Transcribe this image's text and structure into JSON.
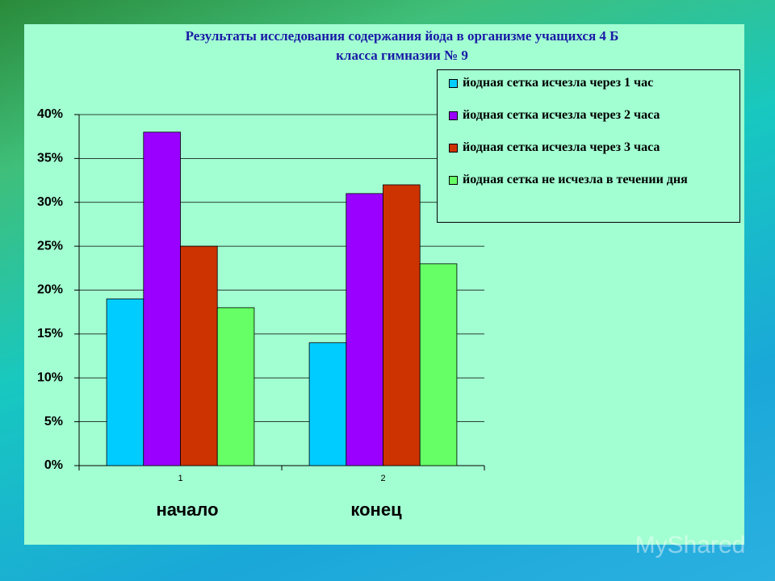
{
  "chart_data": {
    "type": "bar",
    "title": [
      "Результаты исследования содержания йода в организме учащихся 4 Б",
      "класса гимназии № 9"
    ],
    "categories": [
      "1",
      "2"
    ],
    "category_captions": [
      "начало",
      "конец"
    ],
    "series": [
      {
        "name": "йодная сетка исчезла через 1 час",
        "color": "#00ccff",
        "values": [
          19,
          14
        ]
      },
      {
        "name": "йодная сетка исчезла через 2 часа",
        "color": "#9900ff",
        "values": [
          38,
          31
        ]
      },
      {
        "name": "йодная сетка исчезла через 3 часа",
        "color": "#cc3300",
        "values": [
          25,
          32
        ]
      },
      {
        "name": "йодная сетка не исчезла в течении дня",
        "color": "#66ff66",
        "values": [
          18,
          23
        ]
      }
    ],
    "ylim": [
      0,
      40
    ],
    "yticks": [
      {
        "value": 0,
        "label": "0%"
      },
      {
        "value": 5,
        "label": "5%"
      },
      {
        "value": 10,
        "label": "10%"
      },
      {
        "value": 15,
        "label": "15%"
      },
      {
        "value": 20,
        "label": "20%"
      },
      {
        "value": 25,
        "label": "25%"
      },
      {
        "value": 30,
        "label": "30%"
      },
      {
        "value": 35,
        "label": "35%"
      },
      {
        "value": 40,
        "label": "40%"
      }
    ],
    "grid": true,
    "legend": "top-right",
    "watermark": "MyShared"
  }
}
